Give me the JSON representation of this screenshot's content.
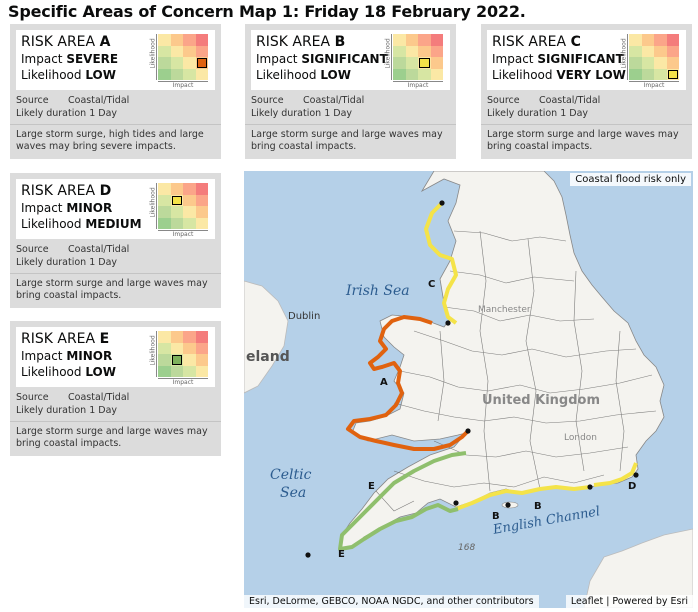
{
  "title": "Specific Areas of Concern Map 1: Friday 18 February 2022.",
  "risk_matrix_labels": {
    "y_axis": "Likelihood",
    "x_axis": "Impact"
  },
  "matrix_colors": {
    "row1": [
      "#fbe8a5",
      "#fcc98c",
      "#fba589",
      "#f47c7c"
    ],
    "row2": [
      "#d7e6a3",
      "#fbe8a5",
      "#fcc98c",
      "#fba589"
    ],
    "row3": [
      "#bcd99b",
      "#d7e6a3",
      "#fbe8a5",
      "#fcc98c"
    ],
    "row4": [
      "#9ccf8e",
      "#bcd99b",
      "#d7e6a3",
      "#fbe8a5"
    ]
  },
  "risk_areas": [
    {
      "id": "A",
      "label_prefix": "RISK AREA ",
      "impact_label": "Impact ",
      "impact": "SEVERE",
      "likelihood_label": "Likelihood ",
      "likelihood": "LOW",
      "marker_color": "#e0620f",
      "source_label": "Source",
      "source": "Coastal/Tidal",
      "duration_label": "Likely duration",
      "duration": "1 Day",
      "description": "Large storm surge, high tides and large waves may bring severe impacts."
    },
    {
      "id": "B",
      "label_prefix": "RISK AREA ",
      "impact_label": "Impact ",
      "impact": "SIGNIFICANT",
      "likelihood_label": "Likelihood ",
      "likelihood": "LOW",
      "marker_color": "#f4e349",
      "source_label": "Source",
      "source": "Coastal/Tidal",
      "duration_label": "Likely duration",
      "duration": "1 Day",
      "description": "Large storm surge and large waves may bring coastal impacts."
    },
    {
      "id": "C",
      "label_prefix": "RISK AREA ",
      "impact_label": "Impact ",
      "impact": "SIGNIFICANT",
      "likelihood_label": "Likelihood ",
      "likelihood": "VERY LOW",
      "marker_color": "#f4e349",
      "source_label": "Source",
      "source": "Coastal/Tidal",
      "duration_label": "Likely duration",
      "duration": "1 Day",
      "description": "Large storm surge and large waves may bring coastal impacts."
    },
    {
      "id": "D",
      "label_prefix": "RISK AREA ",
      "impact_label": "Impact ",
      "impact": "MINOR",
      "likelihood_label": "Likelihood ",
      "likelihood": "MEDIUM",
      "marker_color": "#f4e349",
      "source_label": "Source",
      "source": "Coastal/Tidal",
      "duration_label": "Likely duration",
      "duration": "1 Day",
      "description": "Large storm surge and large waves may bring coastal impacts."
    },
    {
      "id": "E",
      "label_prefix": "RISK AREA ",
      "impact_label": "Impact ",
      "impact": "MINOR",
      "likelihood_label": "Likelihood ",
      "likelihood": "LOW",
      "marker_color": "#7db15c",
      "source_label": "Source",
      "source": "Coastal/Tidal",
      "duration_label": "Likely duration",
      "duration": "1 Day",
      "description": "Large storm surge and large waves may bring coastal impacts."
    }
  ],
  "map": {
    "badge": "Coastal flood risk only",
    "attribution_left": "Esri, DeLorme, GEBCO, NOAA NGDC, and other contributors",
    "attribution_right": "Leaflet | Powered by Esri",
    "labels": {
      "irish_sea": "Irish Sea",
      "dublin": "Dublin",
      "ireland": "eland",
      "celtic_sea_1": "Celtic",
      "celtic_sea_2": "Sea",
      "english_channel": "English Channel",
      "united_kingdom": "United Kingdom",
      "manchester": "Manchester",
      "london": "London",
      "depth": "168",
      "area_a": "A",
      "area_b1": "B",
      "area_b2": "B",
      "area_c": "C",
      "area_d": "D",
      "area_e1": "E",
      "area_e2": "E"
    },
    "colors": {
      "sea": "#b5d0e8",
      "land": "#f4f3ef",
      "area_a": "#e0620f",
      "area_bcd": "#f4e349",
      "area_e": "#8fbf6d"
    }
  }
}
